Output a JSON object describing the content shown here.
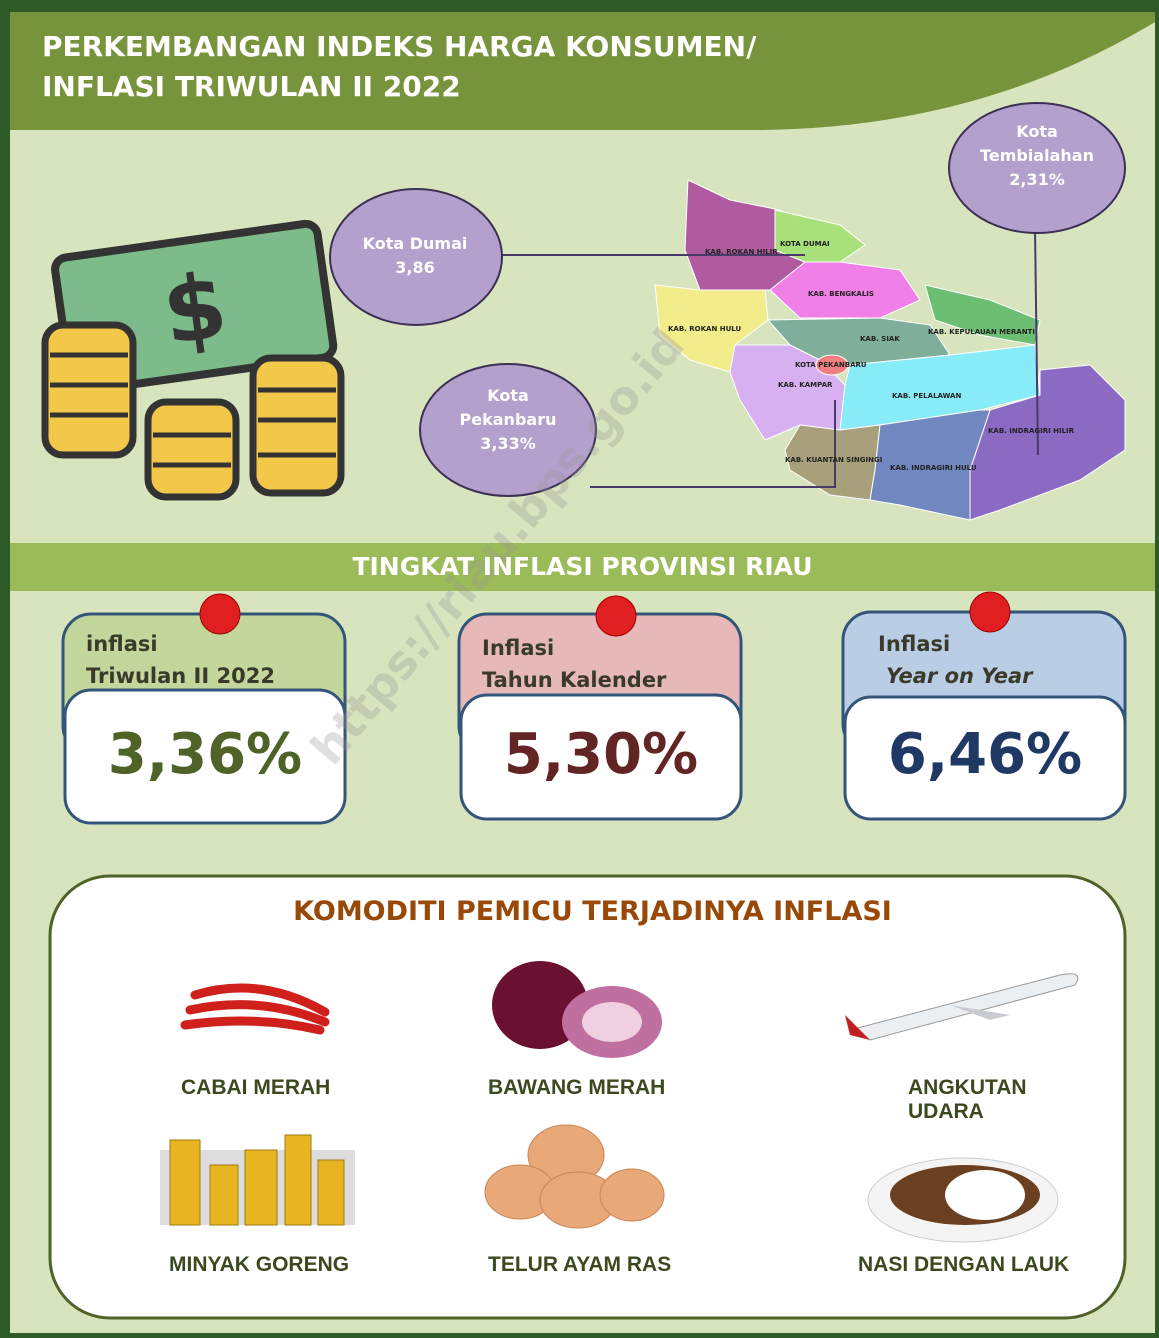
{
  "header": {
    "title_lines": [
      "PERKEMBANGAN INDEKS HARGA KONSUMEN/",
      "INFLASI TRIWULAN II 2022"
    ]
  },
  "map": {
    "cities": [
      {
        "name": "Kota Dumai",
        "value": "3,86"
      },
      {
        "name": "Kota Pekanbaru",
        "value": "3,33%"
      },
      {
        "name": "Kota Tembialahan",
        "value": "2,31%"
      }
    ],
    "regions": [
      "KAB. ROKAN HILIR",
      "KOTA DUMAI",
      "KAB. BENGKALIS",
      "KAB. ROKAN HULU",
      "KAB. KEPULAUAN MERANTI",
      "KAB. SIAK",
      "KOTA PEKANBARU",
      "KAB. KAMPAR",
      "KAB. PELALAWAN",
      "KAB. INDRAGIRI HILIR",
      "KAB. KUANTAN SINGINGI",
      "KAB. INDRAGIRI HULU"
    ]
  },
  "watermark": "https://riau.bps.go.id",
  "inflation": {
    "title": "TINGKAT INFLASI PROVINSI RIAU",
    "cards": [
      {
        "label_lines": [
          "inflasi",
          "Triwulan II 2022"
        ],
        "value": "3,36%"
      },
      {
        "label_lines": [
          "Inflasi",
          "Tahun Kalender"
        ],
        "value": "5,30%"
      },
      {
        "label_lines": [
          "Inflasi",
          "Year on Year"
        ],
        "value": "6,46%"
      }
    ]
  },
  "commodities": {
    "title": "KOMODITI PEMICU TERJADINYA INFLASI",
    "items": [
      "CABAI MERAH",
      "BAWANG MERAH",
      "ANGKUTAN UDARA",
      "MINYAK GORENG",
      "TELUR AYAM RAS",
      "NASI DENGAN LAUK"
    ]
  }
}
